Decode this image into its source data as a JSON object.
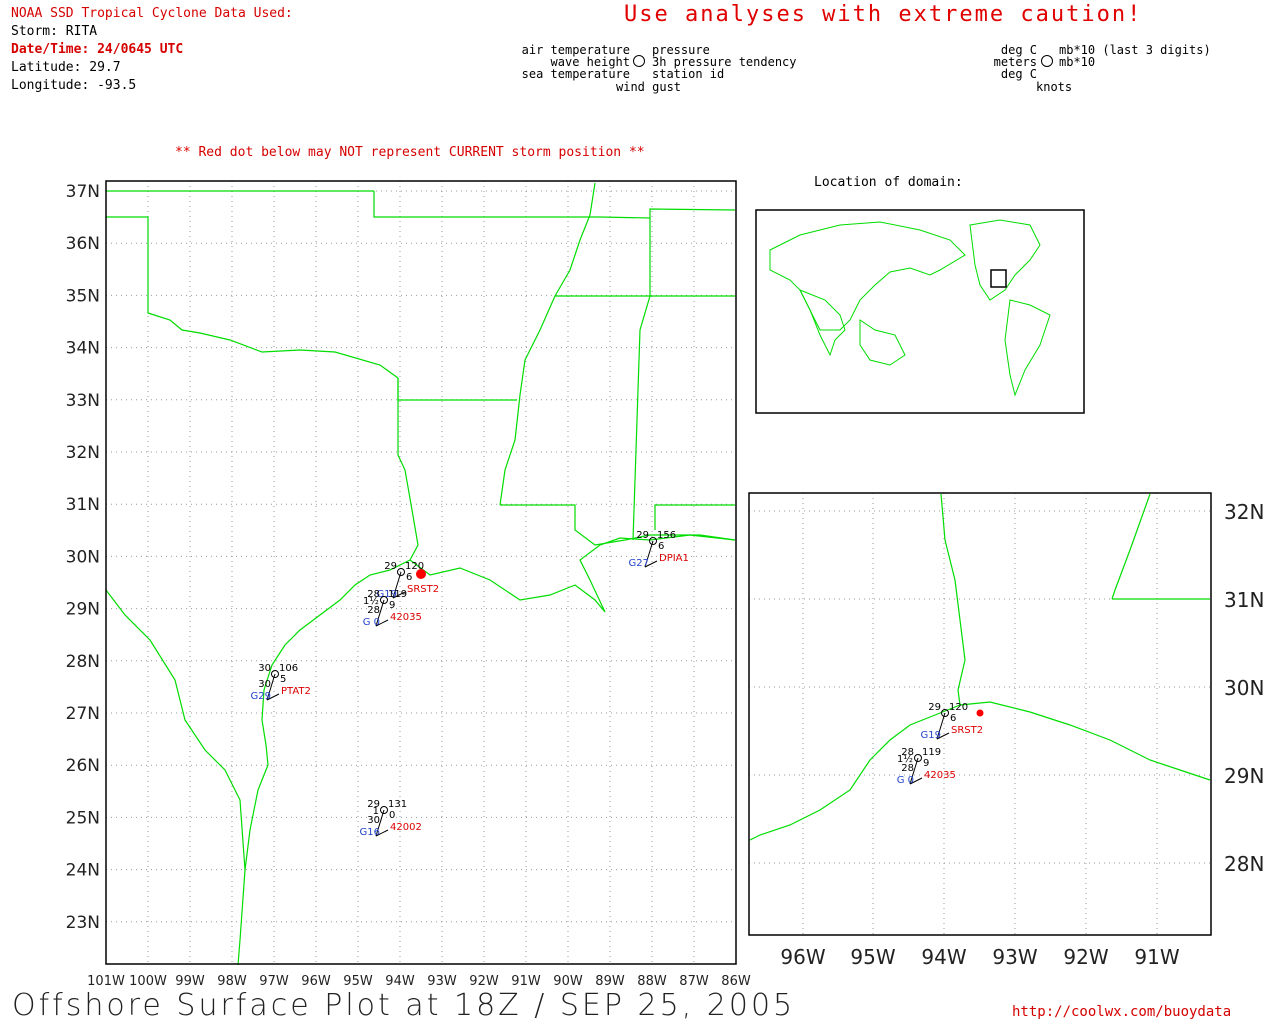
{
  "header": {
    "source_title": "NOAA SSD Tropical Cyclone Data Used:",
    "storm": "Storm: RITA",
    "datetime": "Date/Time: 24/0645 UTC",
    "latitude": "Latitude: 29.7",
    "longitude": "Longitude: -93.5",
    "caution": "Use analyses with extreme caution!",
    "position_warning": "** Red dot below may NOT represent CURRENT storm position **"
  },
  "legend": {
    "left_col": [
      "air temperature",
      "wave height",
      "sea temperature"
    ],
    "right_col": [
      "pressure",
      "3h pressure tendency",
      "station id",
      "wind gust"
    ],
    "units_left": [
      "deg C",
      "meters",
      "deg C"
    ],
    "units_right": [
      "mb*10 (last 3 digits)",
      "mb*10",
      "knots"
    ]
  },
  "main_map": {
    "lat_labels": [
      "37N",
      "36N",
      "35N",
      "34N",
      "33N",
      "32N",
      "31N",
      "30N",
      "29N",
      "28N",
      "27N",
      "26N",
      "25N",
      "24N",
      "23N"
    ],
    "lon_labels": [
      "101W",
      "100W",
      "99W",
      "98W",
      "97W",
      "96W",
      "95W",
      "94W",
      "93W",
      "92W",
      "91W",
      "90W",
      "89W",
      "88W",
      "87W",
      "86W"
    ],
    "stations": [
      {
        "id": "SRST2",
        "air": "29",
        "pres": "120",
        "tend": "6",
        "gust": "G19"
      },
      {
        "id": "42035",
        "air": "28",
        "pres": "119",
        "wave": "1½",
        "sea": "28",
        "tend": "9",
        "gust": "G 0"
      },
      {
        "id": "PTAT2",
        "air": "30",
        "pres": "106",
        "sea": "30",
        "tend": "5",
        "gust": "G29"
      },
      {
        "id": "42002",
        "air": "29",
        "pres": "131",
        "wave": "1",
        "sea": "30",
        "tend": "0",
        "gust": "G16"
      },
      {
        "id": "DPIA1",
        "air": "29",
        "pres": "156",
        "tend": "6",
        "gust": "G27"
      }
    ]
  },
  "inset": {
    "title": "Location of domain:"
  },
  "zoom_map": {
    "lat_labels": [
      "32N",
      "31N",
      "30N",
      "29N",
      "28N"
    ],
    "lon_labels": [
      "96W",
      "95W",
      "94W",
      "93W",
      "92W",
      "91W"
    ],
    "stations": [
      {
        "id": "SRST2",
        "air": "29",
        "pres": "120",
        "tend": "6",
        "gust": "G19"
      },
      {
        "id": "42035",
        "air": "28",
        "pres": "119",
        "wave": "1½",
        "sea": "28",
        "tend": "9",
        "gust": "G 0"
      }
    ]
  },
  "footer": {
    "title": "Offshore Surface Plot at 18Z / SEP 25, 2005",
    "url": "http://coolwx.com/buoydata"
  },
  "colors": {
    "land": "#00dd00",
    "storm": "#ff0000",
    "station_id": "#dd0000",
    "gust": "#2244cc",
    "grid": "#888888"
  }
}
